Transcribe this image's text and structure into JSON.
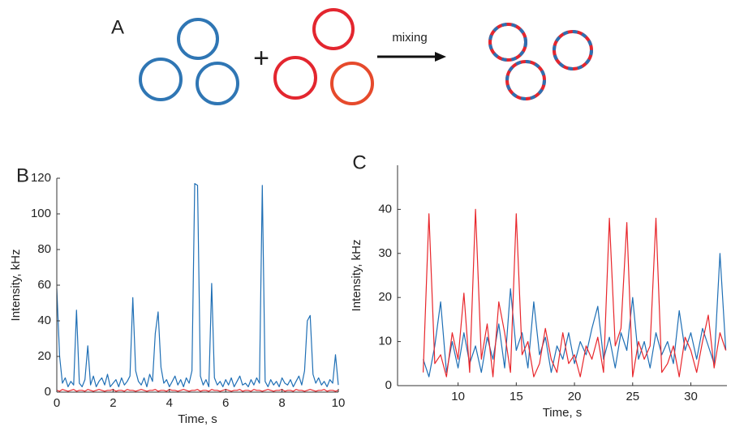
{
  "diagram": {
    "panel_label": "A",
    "plus": "+",
    "arrow_label": "mixing"
  },
  "chart_data": [
    {
      "type": "line",
      "panel_label": "B",
      "x_label": "Time, s",
      "y_label": "Intensity, kHz",
      "xlim": [
        0,
        10
      ],
      "ylim": [
        0,
        120
      ],
      "xticks": [
        0,
        2,
        4,
        6,
        8,
        10
      ],
      "yticks": [
        0,
        20,
        40,
        60,
        80,
        100,
        120
      ],
      "x": [
        0,
        0.1,
        0.2,
        0.3,
        0.4,
        0.5,
        0.6,
        0.7,
        0.8,
        0.9,
        1,
        1.1,
        1.2,
        1.3,
        1.4,
        1.5,
        1.6,
        1.7,
        1.8,
        1.9,
        2,
        2.1,
        2.2,
        2.3,
        2.4,
        2.5,
        2.6,
        2.7,
        2.8,
        2.9,
        3,
        3.1,
        3.2,
        3.3,
        3.4,
        3.5,
        3.6,
        3.7,
        3.8,
        3.9,
        4,
        4.1,
        4.2,
        4.3,
        4.4,
        4.5,
        4.6,
        4.7,
        4.8,
        4.9,
        5,
        5.1,
        5.2,
        5.3,
        5.4,
        5.5,
        5.6,
        5.7,
        5.8,
        5.9,
        6,
        6.1,
        6.2,
        6.3,
        6.4,
        6.5,
        6.6,
        6.7,
        6.8,
        6.9,
        7,
        7.1,
        7.2,
        7.3,
        7.4,
        7.5,
        7.6,
        7.7,
        7.8,
        7.9,
        8,
        8.1,
        8.2,
        8.3,
        8.4,
        8.5,
        8.6,
        8.7,
        8.8,
        8.9,
        9,
        9.1,
        9.2,
        9.3,
        9.4,
        9.5,
        9.6,
        9.7,
        9.8,
        9.9,
        10
      ],
      "series": [
        {
          "color": "#1f6fb5",
          "values": [
            58,
            20,
            5,
            8,
            3,
            6,
            4,
            46,
            5,
            3,
            7,
            26,
            4,
            9,
            3,
            6,
            8,
            4,
            10,
            3,
            5,
            7,
            3,
            8,
            4,
            6,
            9,
            53,
            12,
            6,
            4,
            8,
            3,
            10,
            6,
            33,
            45,
            14,
            5,
            7,
            3,
            6,
            9,
            4,
            7,
            3,
            8,
            5,
            12,
            117,
            116,
            9,
            4,
            7,
            3,
            61,
            8,
            4,
            6,
            3,
            7,
            4,
            8,
            3,
            6,
            9,
            4,
            5,
            3,
            7,
            4,
            8,
            5,
            116,
            6,
            3,
            7,
            4,
            6,
            3,
            8,
            5,
            4,
            7,
            3,
            6,
            9,
            4,
            12,
            40,
            43,
            10,
            5,
            8,
            4,
            6,
            3,
            7,
            5,
            21,
            4
          ]
        },
        {
          "color": "#e8262b",
          "values": [
            1,
            0.5,
            1.5,
            1,
            0.5,
            1,
            1.5,
            0.5,
            1,
            1,
            0.5,
            1.5,
            1,
            0.5,
            1,
            1.5,
            1,
            0.5,
            1,
            1,
            1.5,
            0.5,
            1,
            1,
            0.5,
            1.5,
            1,
            1,
            0.5,
            1,
            1.5,
            1,
            0.5,
            1,
            1,
            1.5,
            0.5,
            1,
            1,
            0.5,
            1.5,
            1,
            1,
            0.5,
            1,
            1.5,
            1,
            0.5,
            1,
            1,
            1.5,
            0.5,
            1,
            1,
            0.5,
            1.5,
            1,
            1,
            0.5,
            1,
            1.5,
            1,
            0.5,
            1,
            1,
            1.5,
            0.5,
            1,
            1,
            0.5,
            1.5,
            1,
            1,
            0.5,
            1,
            1.5,
            1,
            0.5,
            1,
            1,
            1.5,
            0.5,
            1,
            1,
            0.5,
            1.5,
            1,
            1,
            0.5,
            1,
            1.5,
            1,
            0.5,
            1,
            1,
            1.5,
            0.5,
            1,
            1,
            0.5,
            1
          ]
        }
      ]
    },
    {
      "type": "line",
      "panel_label": "C",
      "x_label": "Time, s",
      "y_label": "Intensity, kHz",
      "xlim": [
        4.8,
        33.1
      ],
      "ylim": [
        0,
        50
      ],
      "xticks": [
        10,
        15,
        20,
        25,
        30
      ],
      "yticks": [
        0,
        10,
        20,
        30,
        40
      ],
      "x": [
        7,
        7.5,
        8,
        8.5,
        9,
        9.5,
        10,
        10.5,
        11,
        11.5,
        12,
        12.5,
        13,
        13.5,
        14,
        14.5,
        15,
        15.5,
        16,
        16.5,
        17,
        17.5,
        18,
        18.5,
        19,
        19.5,
        20,
        20.5,
        21,
        21.5,
        22,
        22.5,
        23,
        23.5,
        24,
        24.5,
        25,
        25.5,
        26,
        26.5,
        27,
        27.5,
        28,
        28.5,
        29,
        29.5,
        30,
        30.5,
        31,
        31.5,
        32,
        32.5,
        33
      ],
      "series": [
        {
          "color": "#1f6fb5",
          "values": [
            6,
            2,
            9,
            19,
            3,
            10,
            4,
            12,
            5,
            9,
            3,
            11,
            6,
            14,
            4,
            22,
            8,
            12,
            4,
            19,
            7,
            11,
            3,
            9,
            6,
            12,
            5,
            10,
            7,
            13,
            18,
            6,
            11,
            4,
            12,
            8,
            20,
            6,
            10,
            4,
            12,
            7,
            10,
            5,
            17,
            8,
            12,
            6,
            13,
            9,
            5,
            30,
            8
          ]
        },
        {
          "color": "#e8262b",
          "values": [
            3,
            39,
            5,
            7,
            2,
            12,
            6,
            21,
            3,
            40,
            6,
            14,
            2,
            19,
            12,
            3,
            39,
            7,
            10,
            2,
            5,
            13,
            6,
            3,
            12,
            5,
            7,
            2,
            9,
            6,
            11,
            3,
            38,
            9,
            13,
            37,
            2,
            10,
            6,
            9,
            38,
            3,
            5,
            9,
            2,
            11,
            8,
            3,
            10,
            16,
            4,
            12,
            8
          ]
        }
      ]
    }
  ]
}
